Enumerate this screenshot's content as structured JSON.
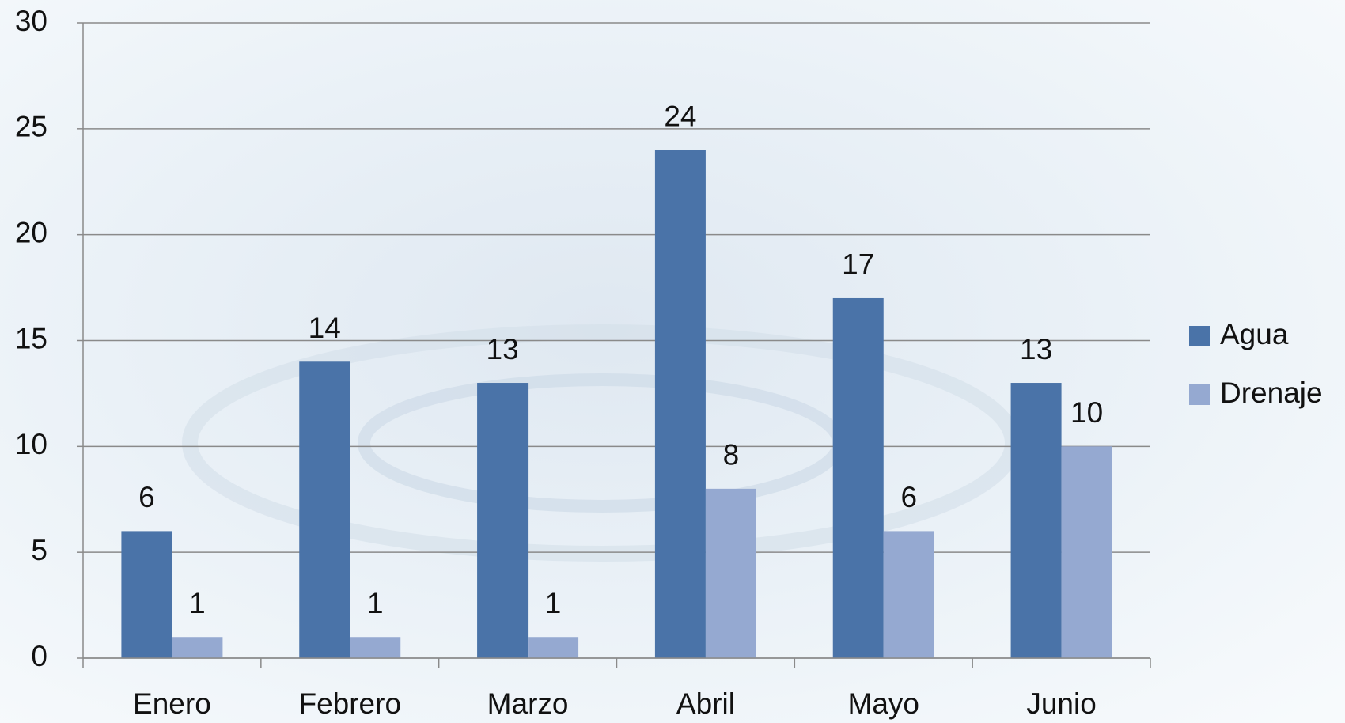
{
  "chart_data": {
    "type": "bar",
    "categories": [
      "Enero",
      "Febrero",
      "Marzo",
      "Abril",
      "Mayo",
      "Junio"
    ],
    "series": [
      {
        "name": "Agua",
        "color": "#4a73a8",
        "values": [
          6,
          14,
          13,
          24,
          17,
          13
        ]
      },
      {
        "name": "Drenaje",
        "color": "#95a9d1",
        "values": [
          1,
          1,
          1,
          8,
          6,
          10
        ]
      }
    ],
    "ylim": [
      0,
      30
    ],
    "yticks": [
      0,
      5,
      10,
      15,
      20,
      25,
      30
    ],
    "grid": true,
    "legend": "right"
  }
}
